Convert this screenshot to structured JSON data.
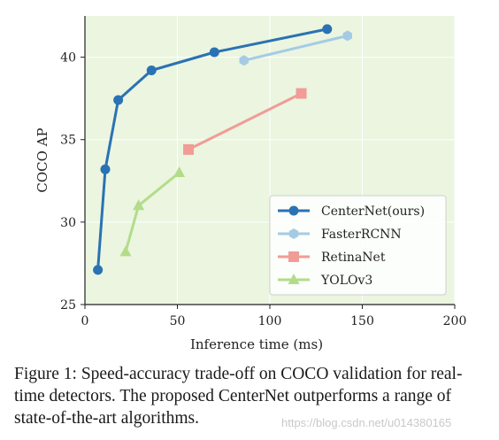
{
  "chart_data": {
    "type": "line",
    "xlabel": "Inference time (ms)",
    "ylabel": "COCO AP",
    "xlim": [
      0,
      200
    ],
    "ylim": [
      25,
      42.5
    ],
    "x_ticks": [
      "0",
      "50",
      "100",
      "150",
      "200"
    ],
    "y_ticks": [
      "25",
      "30",
      "35",
      "40"
    ],
    "grid": true,
    "legend_position": "bottom-right",
    "series": [
      {
        "name": "CenterNet(ours)",
        "color": "#2a72b3",
        "marker": "circle",
        "x": [
          7,
          11,
          18,
          36,
          70,
          131
        ],
        "y": [
          27.1,
          33.2,
          37.4,
          39.2,
          40.3,
          41.7
        ]
      },
      {
        "name": "FasterRCNN",
        "color": "#a5cbe4",
        "marker": "hexagon",
        "x": [
          86,
          142
        ],
        "y": [
          39.8,
          41.3
        ]
      },
      {
        "name": "RetinaNet",
        "color": "#f19c96",
        "marker": "square",
        "x": [
          56,
          117
        ],
        "y": [
          34.4,
          37.8
        ]
      },
      {
        "name": "YOLOv3",
        "color": "#b3dc8a",
        "marker": "triangle",
        "x": [
          22,
          29,
          51
        ],
        "y": [
          28.2,
          31.0,
          33.0
        ]
      }
    ]
  },
  "caption": "Figure 1: Speed-accuracy trade-off on COCO validation for real-time detectors. The proposed CenterNet outperforms a range of state-of-the-art algorithms.",
  "watermark": "https://blog.csdn.net/u014380165"
}
